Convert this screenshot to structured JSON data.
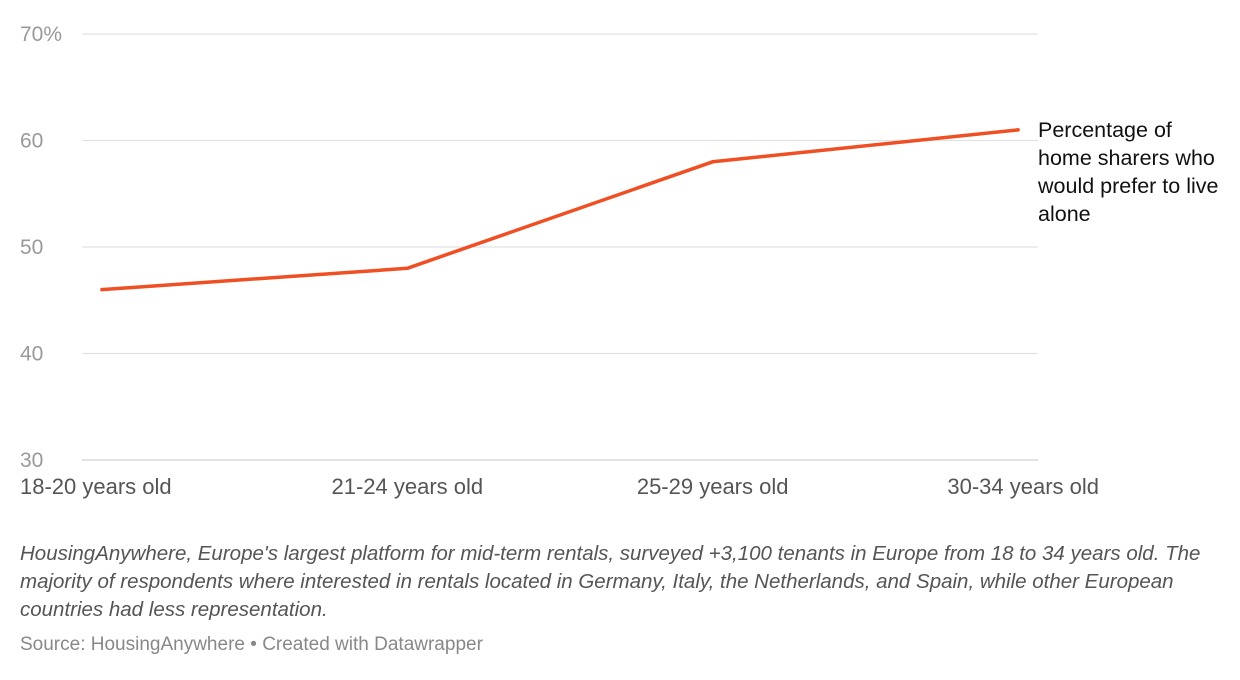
{
  "chart_data": {
    "type": "line",
    "categories": [
      "18-20 years old",
      "21-24 years old",
      "25-29 years old",
      "30-34 years old"
    ],
    "series": [
      {
        "name": "Percentage of home sharers who would prefer to live alone",
        "values": [
          46,
          48,
          58,
          61
        ],
        "color": "#f04e23"
      }
    ],
    "y_ticks": [
      "30",
      "40",
      "50",
      "60",
      "70%"
    ],
    "ylim": [
      30,
      70
    ],
    "grid": true,
    "title": "",
    "xlabel": "",
    "ylabel": ""
  },
  "notes": "HousingAnywhere, Europe's largest platform for mid-term rentals, surveyed +3,100 tenants in Europe from 18 to 34 years old. The majority of respondents where interested in rentals located in Germany, Italy, the Netherlands, and Spain, while other European countries had less representation.",
  "footer": {
    "source": "Source: HousingAnywhere",
    "separator": "•",
    "credit": "Created with Datawrapper"
  }
}
